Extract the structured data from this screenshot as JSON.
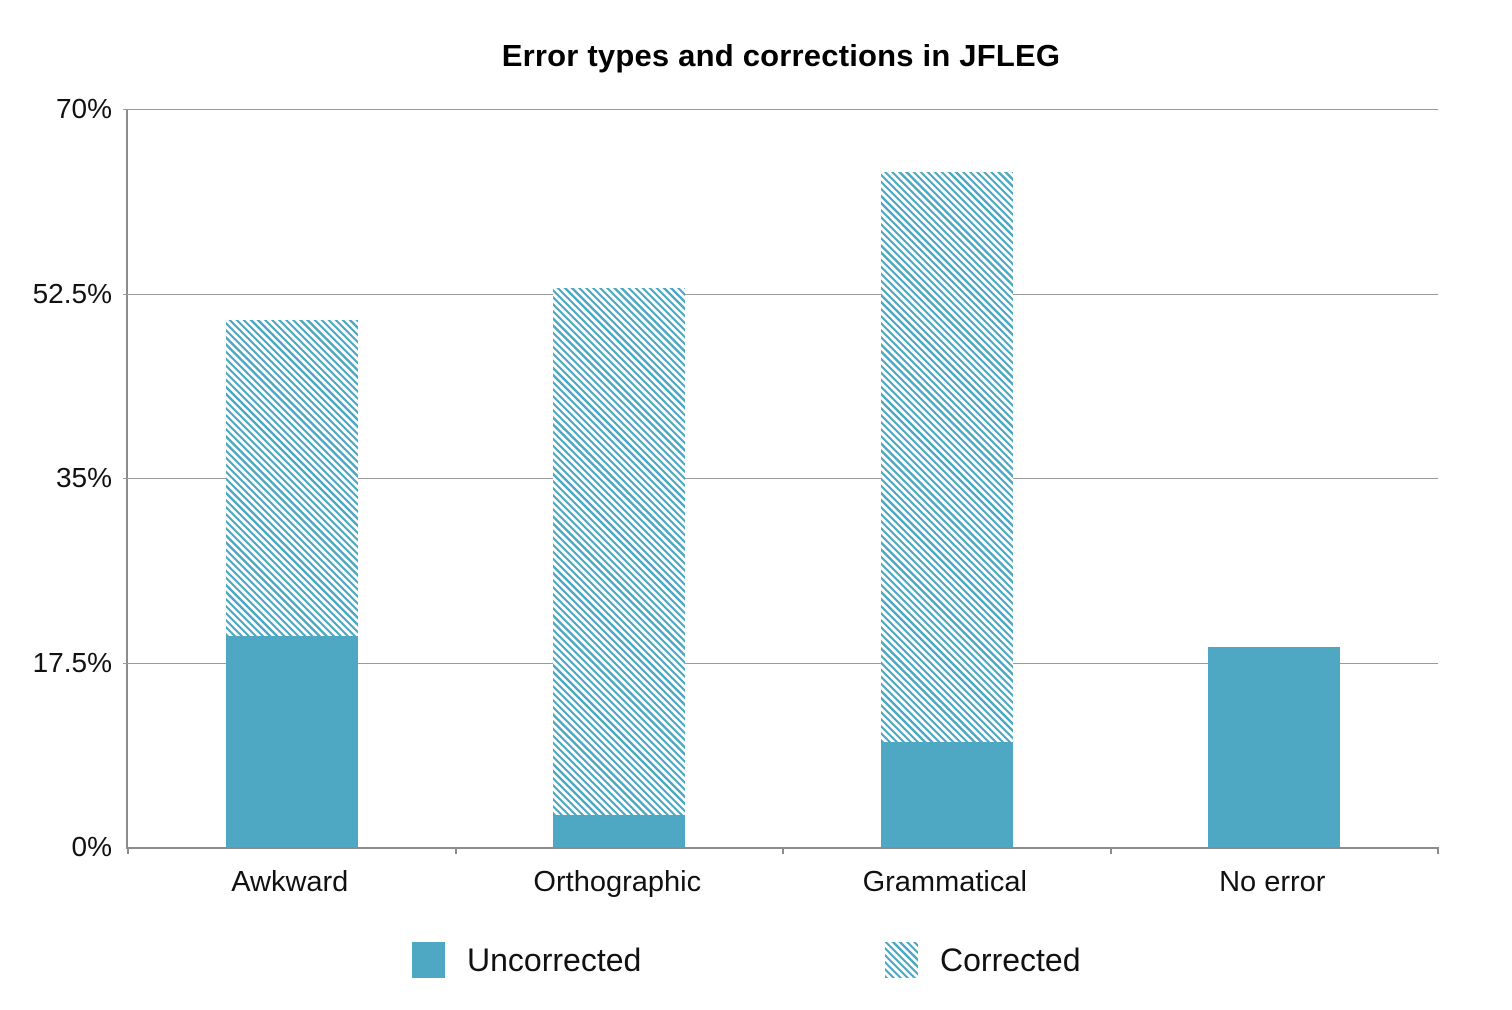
{
  "chart_data": {
    "type": "bar",
    "stacked": true,
    "title": "Error types and corrections in JFLEG",
    "categories": [
      "Awkward",
      "Orthographic",
      "Grammatical",
      "No error"
    ],
    "series": [
      {
        "name": "Uncorrected",
        "pattern": "solid",
        "values": [
          20,
          3,
          10,
          19
        ]
      },
      {
        "name": "Corrected",
        "pattern": "diagonal-hatch",
        "values": [
          30,
          50,
          54,
          0
        ]
      }
    ],
    "stack_totals": [
      50,
      53,
      64,
      19
    ],
    "ylim": [
      0,
      70
    ],
    "y_ticks": [
      {
        "value": 0,
        "label": "0%"
      },
      {
        "value": 17.5,
        "label": "17.5%"
      },
      {
        "value": 35,
        "label": "35%"
      },
      {
        "value": 52.5,
        "label": "52.5%"
      },
      {
        "value": 70,
        "label": "70%"
      }
    ],
    "grid": true,
    "legend_position": "bottom",
    "colors": {
      "bar": "#4FA8C3",
      "hatch_background": "#ffffff",
      "gridline": "#9a9a9a",
      "axis": "#8c8c8c",
      "text": "#111111"
    }
  }
}
